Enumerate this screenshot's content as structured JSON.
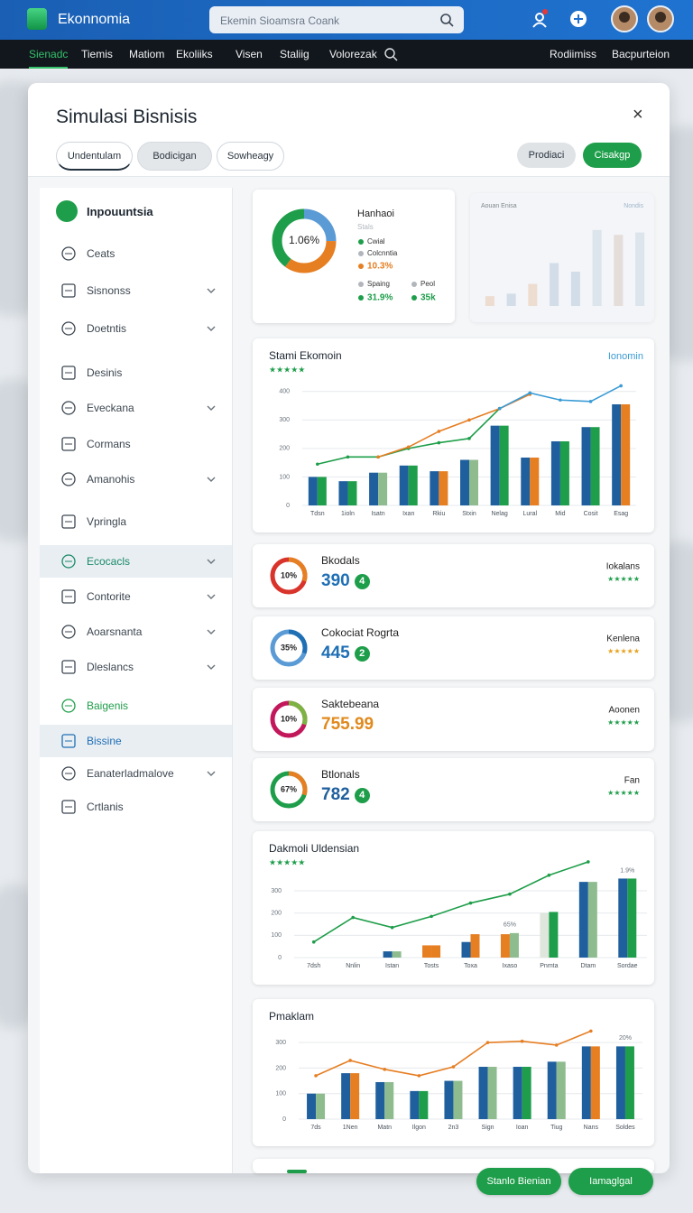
{
  "header": {
    "brand": "Ekonnomia",
    "search_placeholder": "Ekemin Sioamsra Coank"
  },
  "nav": {
    "items": [
      "Sienadc",
      "Tiemis",
      "Matiom",
      "Ekoliiks",
      "Visen",
      "Staliig",
      "Volorezak"
    ],
    "right": [
      "Rodiimiss",
      "Bacpurteion"
    ]
  },
  "modal": {
    "title": "Simulasi Bisnisis",
    "tabs": [
      "Undentulam",
      "Bodicigan",
      "Sowheagy"
    ],
    "buttons": [
      "Prodiaci",
      "Cisakgp"
    ],
    "footer_buttons": [
      "Stanlo Bienian",
      "Iamaglgal"
    ]
  },
  "sidebar": {
    "heading": "Inpouuntsia",
    "items": [
      {
        "label": "Ceats",
        "chevron": false
      },
      {
        "label": "Sisnonss",
        "chevron": true
      },
      {
        "label": "Doetntis",
        "chevron": true
      },
      {
        "label": "Desinis",
        "chevron": false
      },
      {
        "label": "Eveckana",
        "chevron": true
      },
      {
        "label": "Cormans",
        "chevron": false
      },
      {
        "label": "Amanohis",
        "chevron": true
      },
      {
        "label": "Vpringla",
        "chevron": false
      },
      {
        "label": "Ecocacls",
        "chevron": true,
        "highlight": true,
        "color": "#1a8a6a"
      },
      {
        "label": "Contorite",
        "chevron": true
      },
      {
        "label": "Aoarsnanta",
        "chevron": true
      },
      {
        "label": "Dleslancs",
        "chevron": true
      },
      {
        "label": "Baigenis",
        "chevron": false,
        "color": "#1e9e4a"
      },
      {
        "label": "Bissine",
        "chevron": false,
        "highlight": true,
        "color": "#1f6fb5"
      },
      {
        "label": "Eanaterladmalove",
        "chevron": true
      },
      {
        "label": "Crtlanis",
        "chevron": false
      }
    ]
  },
  "kpis": [
    {
      "title": "Bkodals",
      "ring": "10%",
      "ring_colors": [
        "#d9342b",
        "#e67e22"
      ],
      "value": 390,
      "value_color": "#1f6fb5",
      "badge": 4,
      "side": "Iokalans",
      "rating": "★★★★★",
      "rating_color": "#1e9e4a"
    },
    {
      "title": "Cokociat Rogrta",
      "ring": "35%",
      "ring_colors": [
        "#5b9bd5",
        "#1f6fb5"
      ],
      "value": 445,
      "value_color": "#1f6fb5",
      "badge": 2,
      "side": "Kenlena",
      "rating": "★★★★★",
      "rating_color": "#e6a21e"
    },
    {
      "title": "Saktebeana",
      "ring": "10%",
      "ring_colors": [
        "#c2185b",
        "#7cb342"
      ],
      "value": 755.99,
      "value_color": "#e08a1e",
      "side": "Aoonen",
      "rating": "★★★★★",
      "rating_color": "#1e9e4a"
    },
    {
      "title": "Btlonals",
      "ring": "67%",
      "ring_colors": [
        "#1e9e4a",
        "#e67e22"
      ],
      "value": 782,
      "value_color": "#1f5f9e",
      "badge": 4,
      "side": "Fan",
      "rating": "★★★★★",
      "rating_color": "#1e9e4a"
    }
  ],
  "chart_data": [
    {
      "type": "donut",
      "title": "Hanhaoi",
      "subtitle": "Stals",
      "center_label": "1.06%",
      "values": [
        25,
        35,
        40
      ],
      "colors": [
        "#5b9bd5",
        "#e67e22",
        "#1e9e4a"
      ],
      "legend": [
        {
          "text": "Cwial",
          "color": "#1e9e4a"
        },
        {
          "text": "Colcnntia",
          "color": "#b0b6bc"
        },
        {
          "text": "10.3%",
          "color": "#e67e22"
        },
        {
          "text": "Spaing",
          "color": "#b0b6bc"
        },
        {
          "text": "Peol",
          "color": "#b0b6bc"
        },
        {
          "text": "31.9%",
          "color": "#1e9e4a"
        },
        {
          "text": "35k",
          "color": "#1e9e4a"
        }
      ]
    },
    {
      "type": "bar",
      "title": "Aouan Enisa",
      "subtitle": "Nondis",
      "categories": [
        null,
        null,
        null,
        null,
        null,
        null,
        null,
        null
      ],
      "series": [
        {
          "color": "#b7c9dc",
          "colors": [
            "#e9c8b0",
            "#b7c9dc",
            "#e9c8b0",
            "#b7c9dc",
            "#b7c9dc",
            "#c9d6e4",
            "#d8c9c0",
            "#c9d6e4"
          ],
          "values": [
            8,
            10,
            18,
            35,
            28,
            62,
            58,
            60
          ]
        }
      ],
      "ylim": [
        0,
        70
      ]
    },
    {
      "type": "bar",
      "title": "Stami Ekomoin",
      "rating": "★★★★★",
      "categories": [
        "Tdsn",
        "1ioln",
        "Isatn",
        "Ixan",
        "Rkiu",
        "Stxin",
        "Nelag",
        "Lural",
        "Mid",
        "Cosit",
        "Esag"
      ],
      "series": [
        {
          "color": "#1f5f9e",
          "values": [
            100,
            85,
            115,
            140,
            120,
            160,
            280,
            168,
            225,
            275,
            355
          ]
        },
        {
          "color": "#1e9e4a",
          "colors": [
            "#1e9e4a",
            "#1e9e4a",
            "#8fbc8f",
            "#1e9e4a",
            "#e67e22",
            "#8fbc8f",
            "#1e9e4a",
            "#e67e22",
            "#1e9e4a",
            "#1e9e4a",
            "#e67e22"
          ],
          "values": [
            100,
            85,
            115,
            140,
            120,
            160,
            280,
            168,
            225,
            275,
            355
          ]
        },
        {
          "type": "line",
          "color": "#1e9e4a",
          "values": [
            145,
            170,
            170,
            200,
            220,
            235,
            340,
            null,
            null,
            null,
            null
          ]
        },
        {
          "type": "line",
          "color": "#e67e22",
          "values": [
            null,
            null,
            170,
            205,
            260,
            300,
            340,
            390,
            null,
            null,
            null
          ]
        },
        {
          "name": "Ionomin",
          "type": "line",
          "color": "#3a9bd5",
          "values": [
            null,
            null,
            null,
            null,
            null,
            null,
            340,
            395,
            370,
            365,
            420
          ]
        }
      ],
      "ylim": [
        0,
        450
      ],
      "yticks": [
        0,
        100,
        200,
        300,
        400
      ],
      "grid": true
    },
    {
      "type": "bar",
      "title": "Dakmoli Uldensian",
      "rating": "★★★★★",
      "categories": [
        "7dsh",
        "Nnlin",
        "Istan",
        "Tosts",
        "Toxa",
        "Ixaso",
        "Pnmta",
        "Dtam",
        "Sordae"
      ],
      "series": [
        {
          "color": "#1f5f9e",
          "colors": [
            "#1f5f9e",
            "#1f5f9e",
            "#1f5f9e",
            "#e67e22",
            "#1f5f9e",
            "#e67e22",
            "#dfe6dc",
            "#1f5f9e",
            "#1f5f9e"
          ],
          "values": [
            null,
            null,
            28,
            55,
            70,
            105,
            200,
            340,
            355
          ]
        },
        {
          "color": "#1e9e4a",
          "colors": [
            "#8fbc8f",
            "#8fbc8f",
            "#8fbc8f",
            "#e67e22",
            "#e67e22",
            "#8fbc8f",
            "#1e9e4a",
            "#8fbc8f",
            "#1e9e4a"
          ],
          "values": [
            null,
            null,
            28,
            55,
            105,
            110,
            205,
            340,
            355
          ]
        },
        {
          "type": "line",
          "color": "#1e9e4a",
          "values": [
            70,
            180,
            135,
            185,
            245,
            285,
            370,
            430,
            null
          ]
        }
      ],
      "annotations": [
        {
          "text": "65%",
          "category": "Ixaso"
        },
        {
          "text": "1.9%",
          "category": "Sordae"
        }
      ],
      "ylim": [
        0,
        450
      ],
      "yticks": [
        0,
        100,
        200,
        300
      ],
      "grid": true
    },
    {
      "type": "bar",
      "title": "Pmaklam",
      "categories": [
        "7ds",
        "1Nen",
        "Matn",
        "Ilgon",
        "2n3",
        "Sign",
        "Ioan",
        "Tiug",
        "Nans",
        "Soldes"
      ],
      "series": [
        {
          "color": "#1f5f9e",
          "values": [
            100,
            180,
            145,
            110,
            150,
            205,
            205,
            225,
            285,
            285
          ]
        },
        {
          "color": "#8fbc8f",
          "colors": [
            "#8fbc8f",
            "#e67e22",
            "#8fbc8f",
            "#1e9e4a",
            "#8fbc8f",
            "#8fbc8f",
            "#1e9e4a",
            "#8fbc8f",
            "#e67e22",
            "#1e9e4a"
          ],
          "values": [
            100,
            180,
            145,
            110,
            150,
            205,
            205,
            225,
            285,
            285
          ]
        },
        {
          "type": "line",
          "color": "#e67e22",
          "values": [
            170,
            230,
            195,
            170,
            205,
            300,
            305,
            290,
            345,
            null
          ]
        }
      ],
      "annotations": [
        {
          "text": "20%",
          "category": "Soldes"
        }
      ],
      "ylim": [
        0,
        350
      ],
      "yticks": [
        0,
        100,
        200,
        300
      ],
      "grid": true
    }
  ]
}
